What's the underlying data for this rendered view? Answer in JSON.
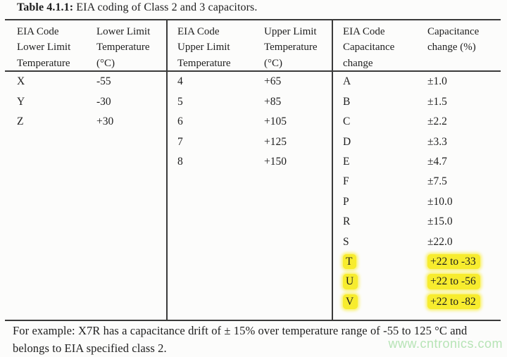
{
  "colors": {
    "ink": "#1e1e1e",
    "rule": "#3a3a3a",
    "highlight": "#f7ec2e",
    "watermark": "#b7e4b6"
  },
  "title": {
    "label": "Table 4.1.1:",
    "text": " EIA coding of Class 2 and 3 capacitors."
  },
  "table": {
    "headers": {
      "h1": "EIA Code\nLower Limit\nTemperature",
      "h2": "Lower Limit\nTemperature\n(°C)",
      "h3": "EIA Code\nUpper Limit\nTemperature",
      "h4": "Upper Limit\nTemperature\n(°C)",
      "h5": "EIA Code\nCapacitance\nchange",
      "h6": "Capacitance\nchange (%)"
    },
    "rows": [
      {
        "c1": "X",
        "c2": "-55",
        "c3": "4",
        "c4": "+65",
        "c5": "A",
        "c6": "±1.0"
      },
      {
        "c1": "Y",
        "c2": "-30",
        "c3": "5",
        "c4": "+85",
        "c5": "B",
        "c6": "±1.5"
      },
      {
        "c1": "Z",
        "c2": "+30",
        "c3": "6",
        "c4": "+105",
        "c5": "C",
        "c6": "±2.2"
      },
      {
        "c1": "",
        "c2": "",
        "c3": "7",
        "c4": "+125",
        "c5": "D",
        "c6": "±3.3"
      },
      {
        "c1": "",
        "c2": "",
        "c3": "8",
        "c4": "+150",
        "c5": "E",
        "c6": "±4.7"
      },
      {
        "c1": "",
        "c2": "",
        "c3": "",
        "c4": "",
        "c5": "F",
        "c6": "±7.5"
      },
      {
        "c1": "",
        "c2": "",
        "c3": "",
        "c4": "",
        "c5": "P",
        "c6": "±10.0"
      },
      {
        "c1": "",
        "c2": "",
        "c3": "",
        "c4": "",
        "c5": "R",
        "c6": "±15.0"
      },
      {
        "c1": "",
        "c2": "",
        "c3": "",
        "c4": "",
        "c5": "S",
        "c6": "±22.0"
      },
      {
        "c1": "",
        "c2": "",
        "c3": "",
        "c4": "",
        "c5": "T",
        "c6": "+22 to -33"
      },
      {
        "c1": "",
        "c2": "",
        "c3": "",
        "c4": "",
        "c5": "U",
        "c6": "+22 to -56"
      },
      {
        "c1": "",
        "c2": "",
        "c3": "",
        "c4": "",
        "c5": "V",
        "c6": "+22 to -82"
      }
    ]
  },
  "footer": {
    "note": "For example: X7R has a capacitance drift of ± 15% over temperature range of -55 to 125 °C and\nbelongs to EIA specified class 2."
  },
  "watermark": "www.cntronics.com"
}
